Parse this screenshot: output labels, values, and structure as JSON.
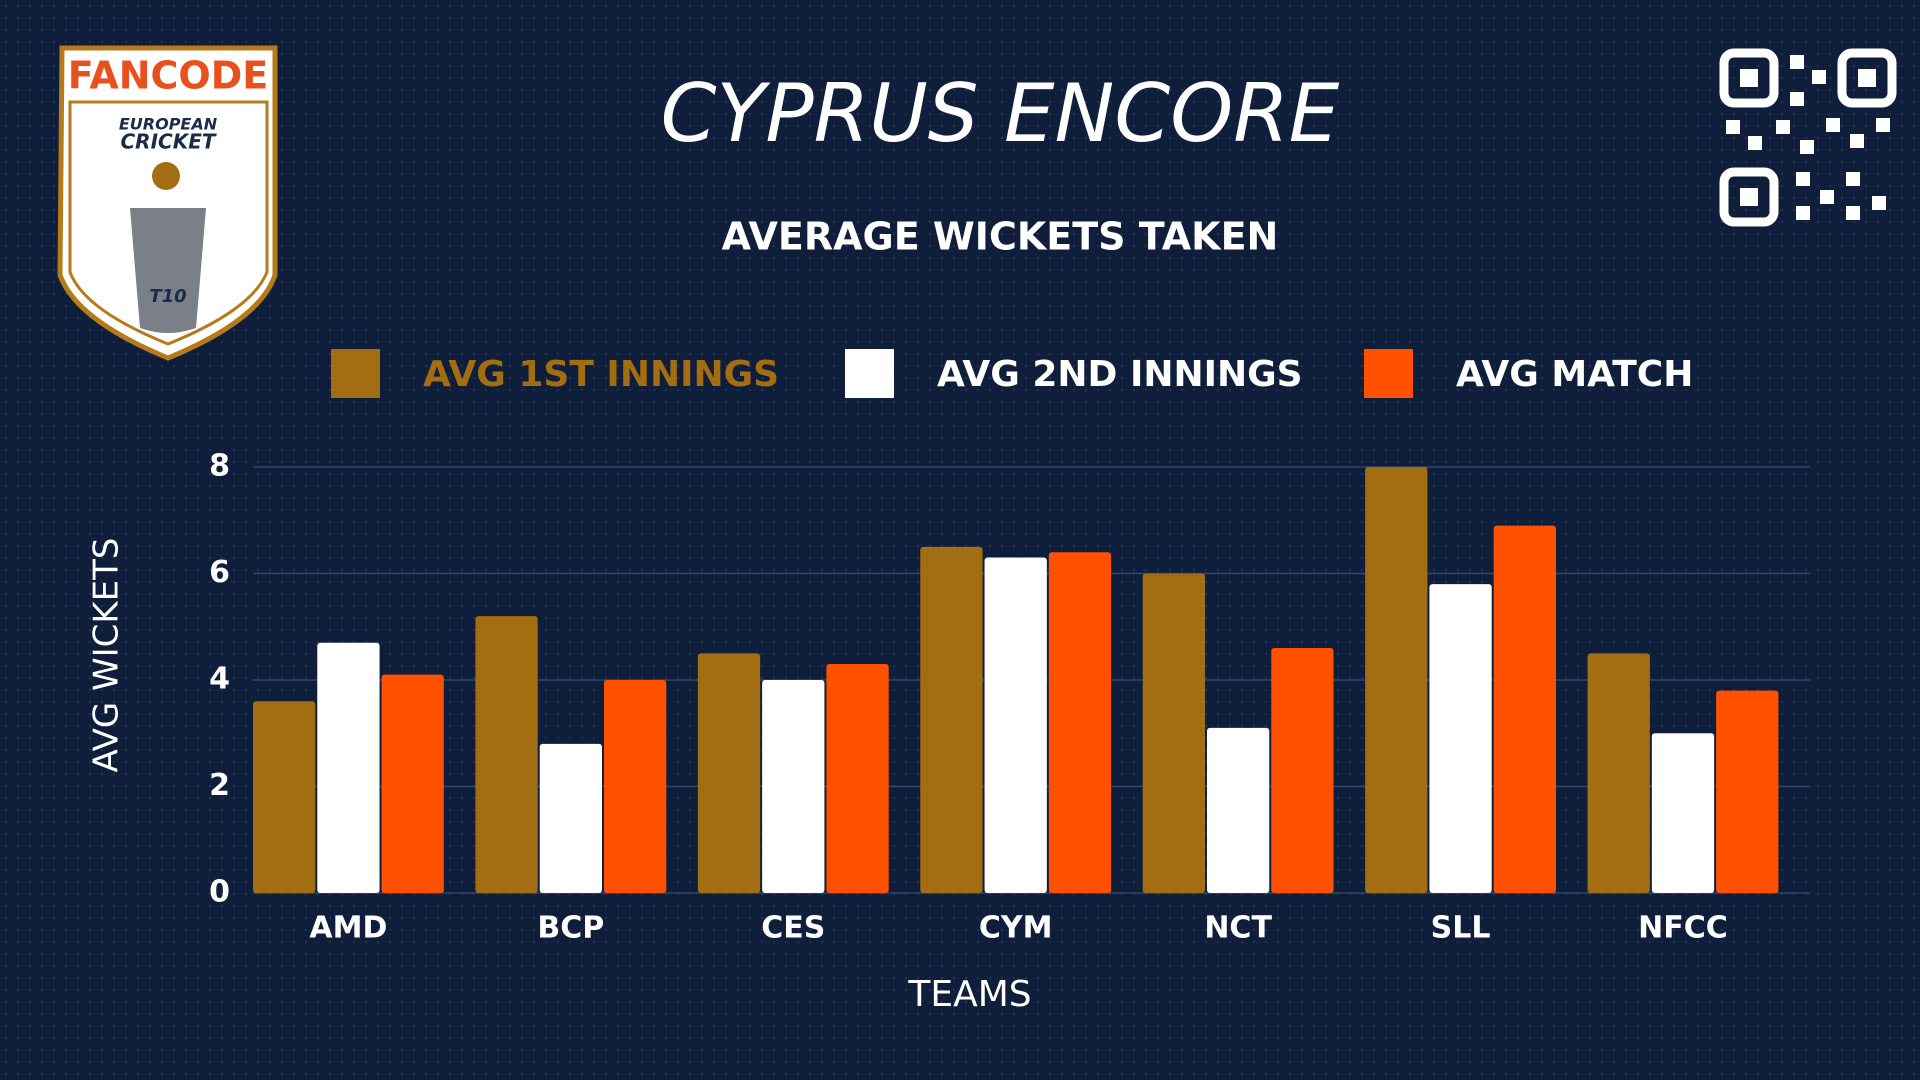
{
  "logo": {
    "brand": "FANCODE",
    "line1": "EUROPEAN",
    "line2": "CRICKET",
    "badge": "T10"
  },
  "chart_data": {
    "type": "bar",
    "title": "CYPRUS ENCORE",
    "subtitle": "AVERAGE WICKETS TAKEN",
    "x_label": "TEAMS",
    "y_label": "AVG WICKETS",
    "categories": [
      "AMD",
      "BCP",
      "CES",
      "CYM",
      "NCT",
      "SLL",
      "NFCC"
    ],
    "series": [
      {
        "name": "AVG 1ST INNINGS",
        "color": "#a36d12",
        "values": [
          3.6,
          5.2,
          4.5,
          6.5,
          6.0,
          8.0,
          4.5
        ]
      },
      {
        "name": "AVG 2ND INNINGS",
        "color": "#ffffff",
        "values": [
          4.7,
          2.8,
          4.0,
          6.3,
          3.1,
          5.8,
          3.0
        ]
      },
      {
        "name": "AVG MATCH",
        "color": "#ff5100",
        "values": [
          4.1,
          4.0,
          4.3,
          6.4,
          4.6,
          6.9,
          3.8
        ]
      }
    ],
    "ylim": [
      0,
      8
    ],
    "yticks": [
      0,
      2,
      4,
      6,
      8
    ],
    "grid": true
  }
}
